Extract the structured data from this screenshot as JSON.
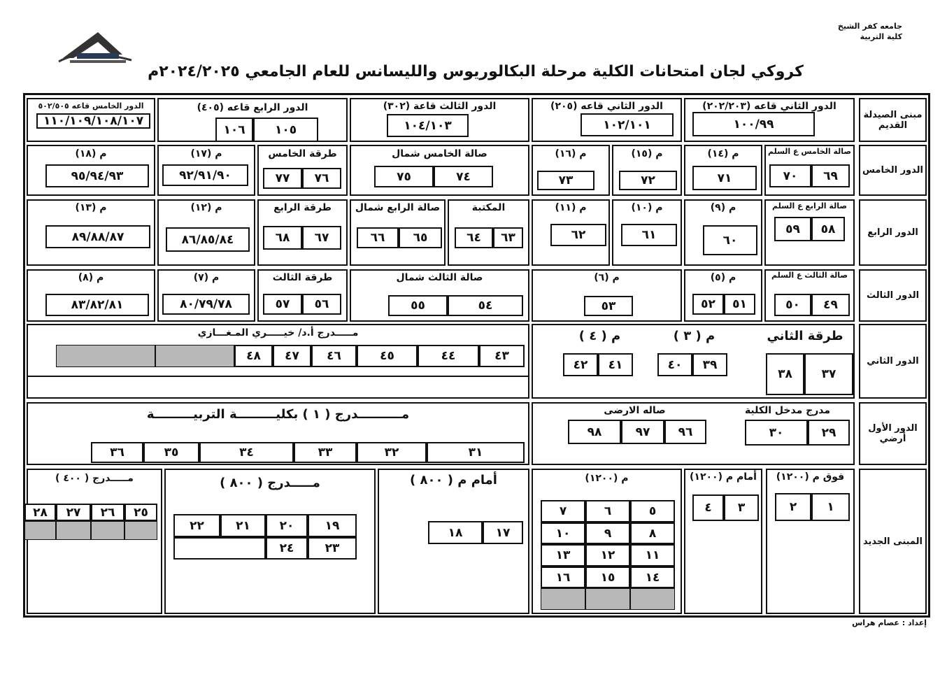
{
  "header": {
    "university": "جامعه كفر الشيخ",
    "faculty": "كلية التربية",
    "title": "كروكي لجان امتحانات الكلية مرحلة البكالوريوس والليسانس للعام الجامعي ٢٠٢٤/٢٠٢٥م",
    "logo_icon": "university-logo-icon"
  },
  "footer": {
    "prepared_by": "إعداد : عصام هراس"
  },
  "rows": [
    {
      "label": "مبنى الصيدلة القديم",
      "cells": [
        {
          "title": "الدور الثاني قاعه (٢٠٢/٢٠٣)",
          "seats": [
            "١٠٠/٩٩"
          ]
        },
        {
          "title": "الدور الثاني قاعه (٢٠٥)",
          "seats": [
            "١٠٢/١٠١"
          ]
        },
        {
          "title": "الدور الثالث قاعة (٣٠٢)",
          "seats": [
            "١٠٤/١٠٣"
          ]
        },
        {
          "title": "الدور الرابع قاعه (٤٠٥)",
          "seats": [
            "١٠٥",
            "١٠٦"
          ]
        },
        {
          "title": "الدور الخامس قاعه ٥٠٢/٥٠٥",
          "seats": [
            "١١٠/١٠٩/١٠٨/١٠٧"
          ]
        }
      ]
    },
    {
      "label": "الدور الخامس",
      "cells": [
        {
          "title": "صالة الخامس ع السلم",
          "seats": [
            "٦٩",
            "٧٠"
          ]
        },
        {
          "title": "م (١٤)",
          "seats": [
            "٧١"
          ]
        },
        {
          "title": "م (١٥)",
          "seats": [
            "٧٢"
          ]
        },
        {
          "title": "م (١٦)",
          "seats": [
            "٧٣"
          ]
        },
        {
          "title": "صالة الخامس شمال",
          "seats": [
            "٧٤",
            "٧٥"
          ]
        },
        {
          "title": "طرقة الخامس",
          "seats": [
            "٧٦",
            "٧٧"
          ]
        },
        {
          "title": "م (١٧)",
          "seats": [
            "٩٢/٩١/٩٠"
          ]
        },
        {
          "title": "م (١٨)",
          "seats": [
            "٩٥/٩٤/٩٣"
          ]
        }
      ]
    },
    {
      "label": "الدور الرابع",
      "cells": [
        {
          "title": "صالة الرابع ع السلم",
          "seats": [
            "٥٨",
            "٥٩"
          ]
        },
        {
          "title": "م (٩)",
          "seats": [
            "٦٠"
          ]
        },
        {
          "title": "م (١٠)",
          "seats": [
            "٦١"
          ]
        },
        {
          "title": "م (١١)",
          "seats": [
            "٦٢"
          ]
        },
        {
          "title": "المكتبة",
          "seats": [
            "٦٣",
            "٦٤"
          ]
        },
        {
          "title": "صالة الرابع شمال",
          "seats": [
            "٦٥",
            "٦٦"
          ]
        },
        {
          "title": "طرقة الرابع",
          "seats": [
            "٦٧",
            "٦٨"
          ]
        },
        {
          "title": "م (١٢)",
          "seats": [
            "٨٦/٨٥/٨٤"
          ]
        },
        {
          "title": "م (١٣)",
          "seats": [
            "٨٩/٨٨/٨٧"
          ]
        }
      ]
    },
    {
      "label": "الدور الثالث",
      "cells": [
        {
          "title": "صالة الثالث ع السلم",
          "seats": [
            "٤٩",
            "٥٠"
          ]
        },
        {
          "title": "م (٥)",
          "seats": [
            "٥١",
            "٥٢"
          ]
        },
        {
          "title": "م (٦)",
          "seats": [
            "٥٣"
          ]
        },
        {
          "title": "صالة الثالث شمال",
          "seats": [
            "٥٤",
            "٥٥"
          ]
        },
        {
          "title": "طرقة الثالث",
          "seats": [
            "٥٦",
            "٥٧"
          ]
        },
        {
          "title": "م (٧)",
          "seats": [
            "٨٠/٧٩/٧٨"
          ]
        },
        {
          "title": "م (٨)",
          "seats": [
            "٨٣/٨٢/٨١"
          ]
        }
      ]
    },
    {
      "label": "الدور الثاني",
      "cells": [
        {
          "title": "طرقة الثاني",
          "seats": [
            "٣٧",
            "٣٨"
          ]
        },
        {
          "title": "م ( ٣ )",
          "seats": [
            "٣٩",
            "٤٠"
          ]
        },
        {
          "title": "م ( ٤ )",
          "seats": [
            "٤١",
            "٤٢"
          ]
        },
        {
          "title": "مـــــدرج أ.د/ خيـــــري المـغـــازي",
          "seats": [
            "٤٣",
            "٤٤",
            "٤٥",
            "٤٦",
            "٤٧",
            "٤٨"
          ]
        }
      ]
    },
    {
      "label": "الدور الأول أرضي",
      "cells": [
        {
          "title": "مدرج مدخل الكلية",
          "seats": [
            "٢٩",
            "٣٠"
          ]
        },
        {
          "title": "صاله الارضى",
          "seats": [
            "٩٦",
            "٩٧",
            "٩٨"
          ]
        },
        {
          "title": "مــــــــــدرج ( ١ ) بكليـــــــــة التربيـــــــــة",
          "seats": [
            "٣١",
            "٣٢",
            "٣٣",
            "٣٤",
            "٣٥",
            "٣٦"
          ]
        }
      ]
    },
    {
      "label": "المبنى الجديد",
      "cells": [
        {
          "title": "فوق م (١٢٠٠)",
          "seats": [
            "١",
            "٢"
          ]
        },
        {
          "title": "أمام م (١٢٠٠)",
          "seats": [
            "٣",
            "٤"
          ]
        },
        {
          "title": "م (١٢٠٠)",
          "seats": [
            "٥",
            "٦",
            "٧",
            "٨",
            "٩",
            "١٠",
            "١١",
            "١٢",
            "١٣",
            "١٤",
            "١٥",
            "١٦"
          ]
        },
        {
          "title": "أمام م ( ٨٠٠ )",
          "seats": [
            "١٧",
            "١٨"
          ]
        },
        {
          "title": "مـــــدرج ( ٨٠٠ )",
          "seats": [
            "١٩",
            "٢٠",
            "٢١",
            "٢٢",
            "٢٣",
            "٢٤"
          ]
        },
        {
          "title": "مـــــدرج ( ٤٠٠ )",
          "seats": [
            "٢٥",
            "٢٦",
            "٢٧",
            "٢٨"
          ]
        }
      ]
    }
  ],
  "colors": {
    "line": "#111111",
    "unused_seat": "#b8b8b8",
    "background": "#ffffff"
  }
}
